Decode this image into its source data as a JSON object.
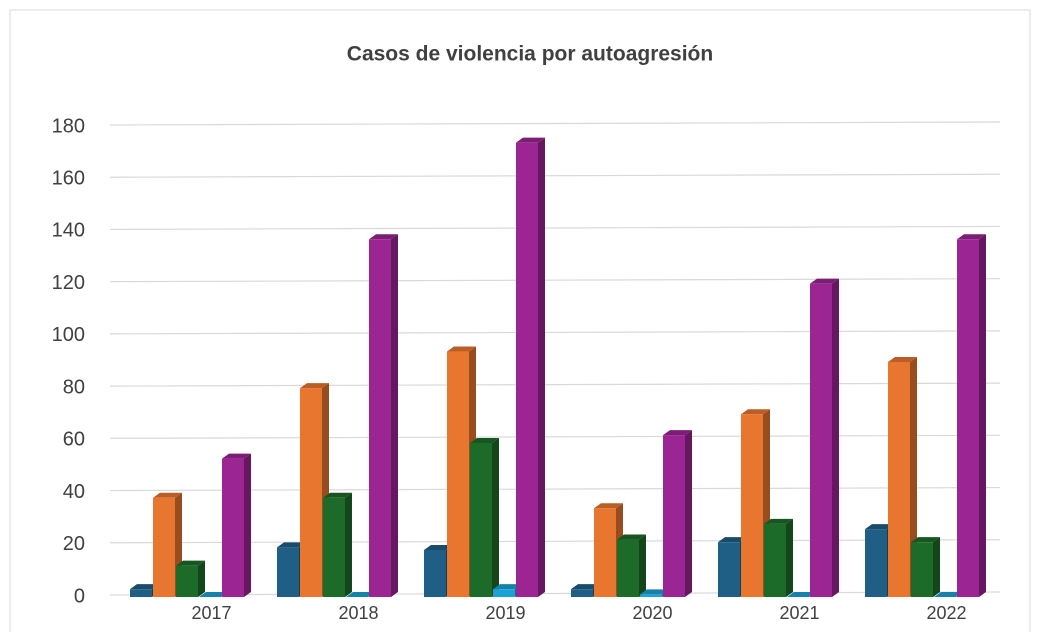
{
  "chart_data": {
    "type": "bar3d",
    "title": "Casos de violencia por autoagresión",
    "categories": [
      "2017",
      "2018",
      "2019",
      "2020",
      "2021",
      "2022"
    ],
    "series": [
      {
        "color": "#1f5f86",
        "values": [
          3,
          19,
          18,
          3,
          21,
          26
        ]
      },
      {
        "color": "#e8762f",
        "values": [
          38,
          80,
          94,
          34,
          70,
          90
        ]
      },
      {
        "color": "#1d6b28",
        "values": [
          12,
          38,
          59,
          22,
          28,
          21
        ]
      },
      {
        "color": "#1ba3d6",
        "values": [
          0,
          0,
          3,
          1,
          0,
          0
        ]
      },
      {
        "color": "#9b2593",
        "values": [
          53,
          137,
          174,
          62,
          120,
          137
        ]
      }
    ],
    "ylim": [
      0,
      180
    ],
    "yticks": [
      0,
      20,
      40,
      60,
      80,
      100,
      120,
      140,
      160,
      180
    ],
    "grid": true
  }
}
